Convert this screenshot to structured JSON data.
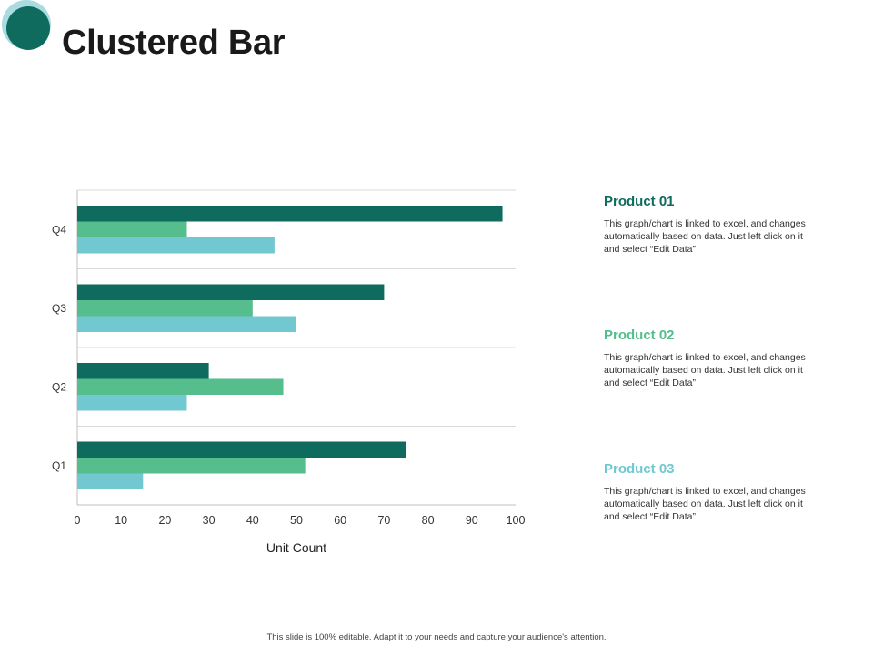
{
  "slide": {
    "title": "Clustered Bar",
    "footer": "This slide is 100% editable. Adapt it to your needs and capture your audience's attention."
  },
  "colors": {
    "product01": "#0f6b5e",
    "product02": "#56bd8d",
    "product03": "#72c8d0",
    "logo_outer": "#a9dbe0",
    "logo_inner": "#0f6b5e",
    "grid": "#d9d9d9",
    "axis": "#bfbfbf"
  },
  "legend": [
    {
      "name": "Product 01",
      "desc": "This graph/chart is linked to excel, and changes automatically based on data. Just left click on it and select “Edit Data”."
    },
    {
      "name": "Product 02",
      "desc": "This graph/chart is linked to excel, and changes automatically based on data. Just left click on it and select “Edit Data”."
    },
    {
      "name": "Product 03",
      "desc": "This graph/chart is linked to excel, and changes automatically based on data. Just left click on it and select “Edit Data”."
    }
  ],
  "chart_data": {
    "type": "bar",
    "orientation": "horizontal",
    "title": "Clustered Bar",
    "categories": [
      "Q1",
      "Q2",
      "Q3",
      "Q4"
    ],
    "series": [
      {
        "name": "Product 01",
        "values": [
          75,
          30,
          70,
          97
        ]
      },
      {
        "name": "Product 02",
        "values": [
          52,
          47,
          40,
          25
        ]
      },
      {
        "name": "Product 03",
        "values": [
          15,
          25,
          50,
          45
        ]
      }
    ],
    "xlabel": "Unit Count",
    "ylabel": "",
    "xlim": [
      0,
      100
    ],
    "xticks": [
      "0",
      "10",
      "20",
      "30",
      "40",
      "50",
      "60",
      "70",
      "80",
      "90",
      "100"
    ],
    "grid": true,
    "legend_position": "right"
  }
}
